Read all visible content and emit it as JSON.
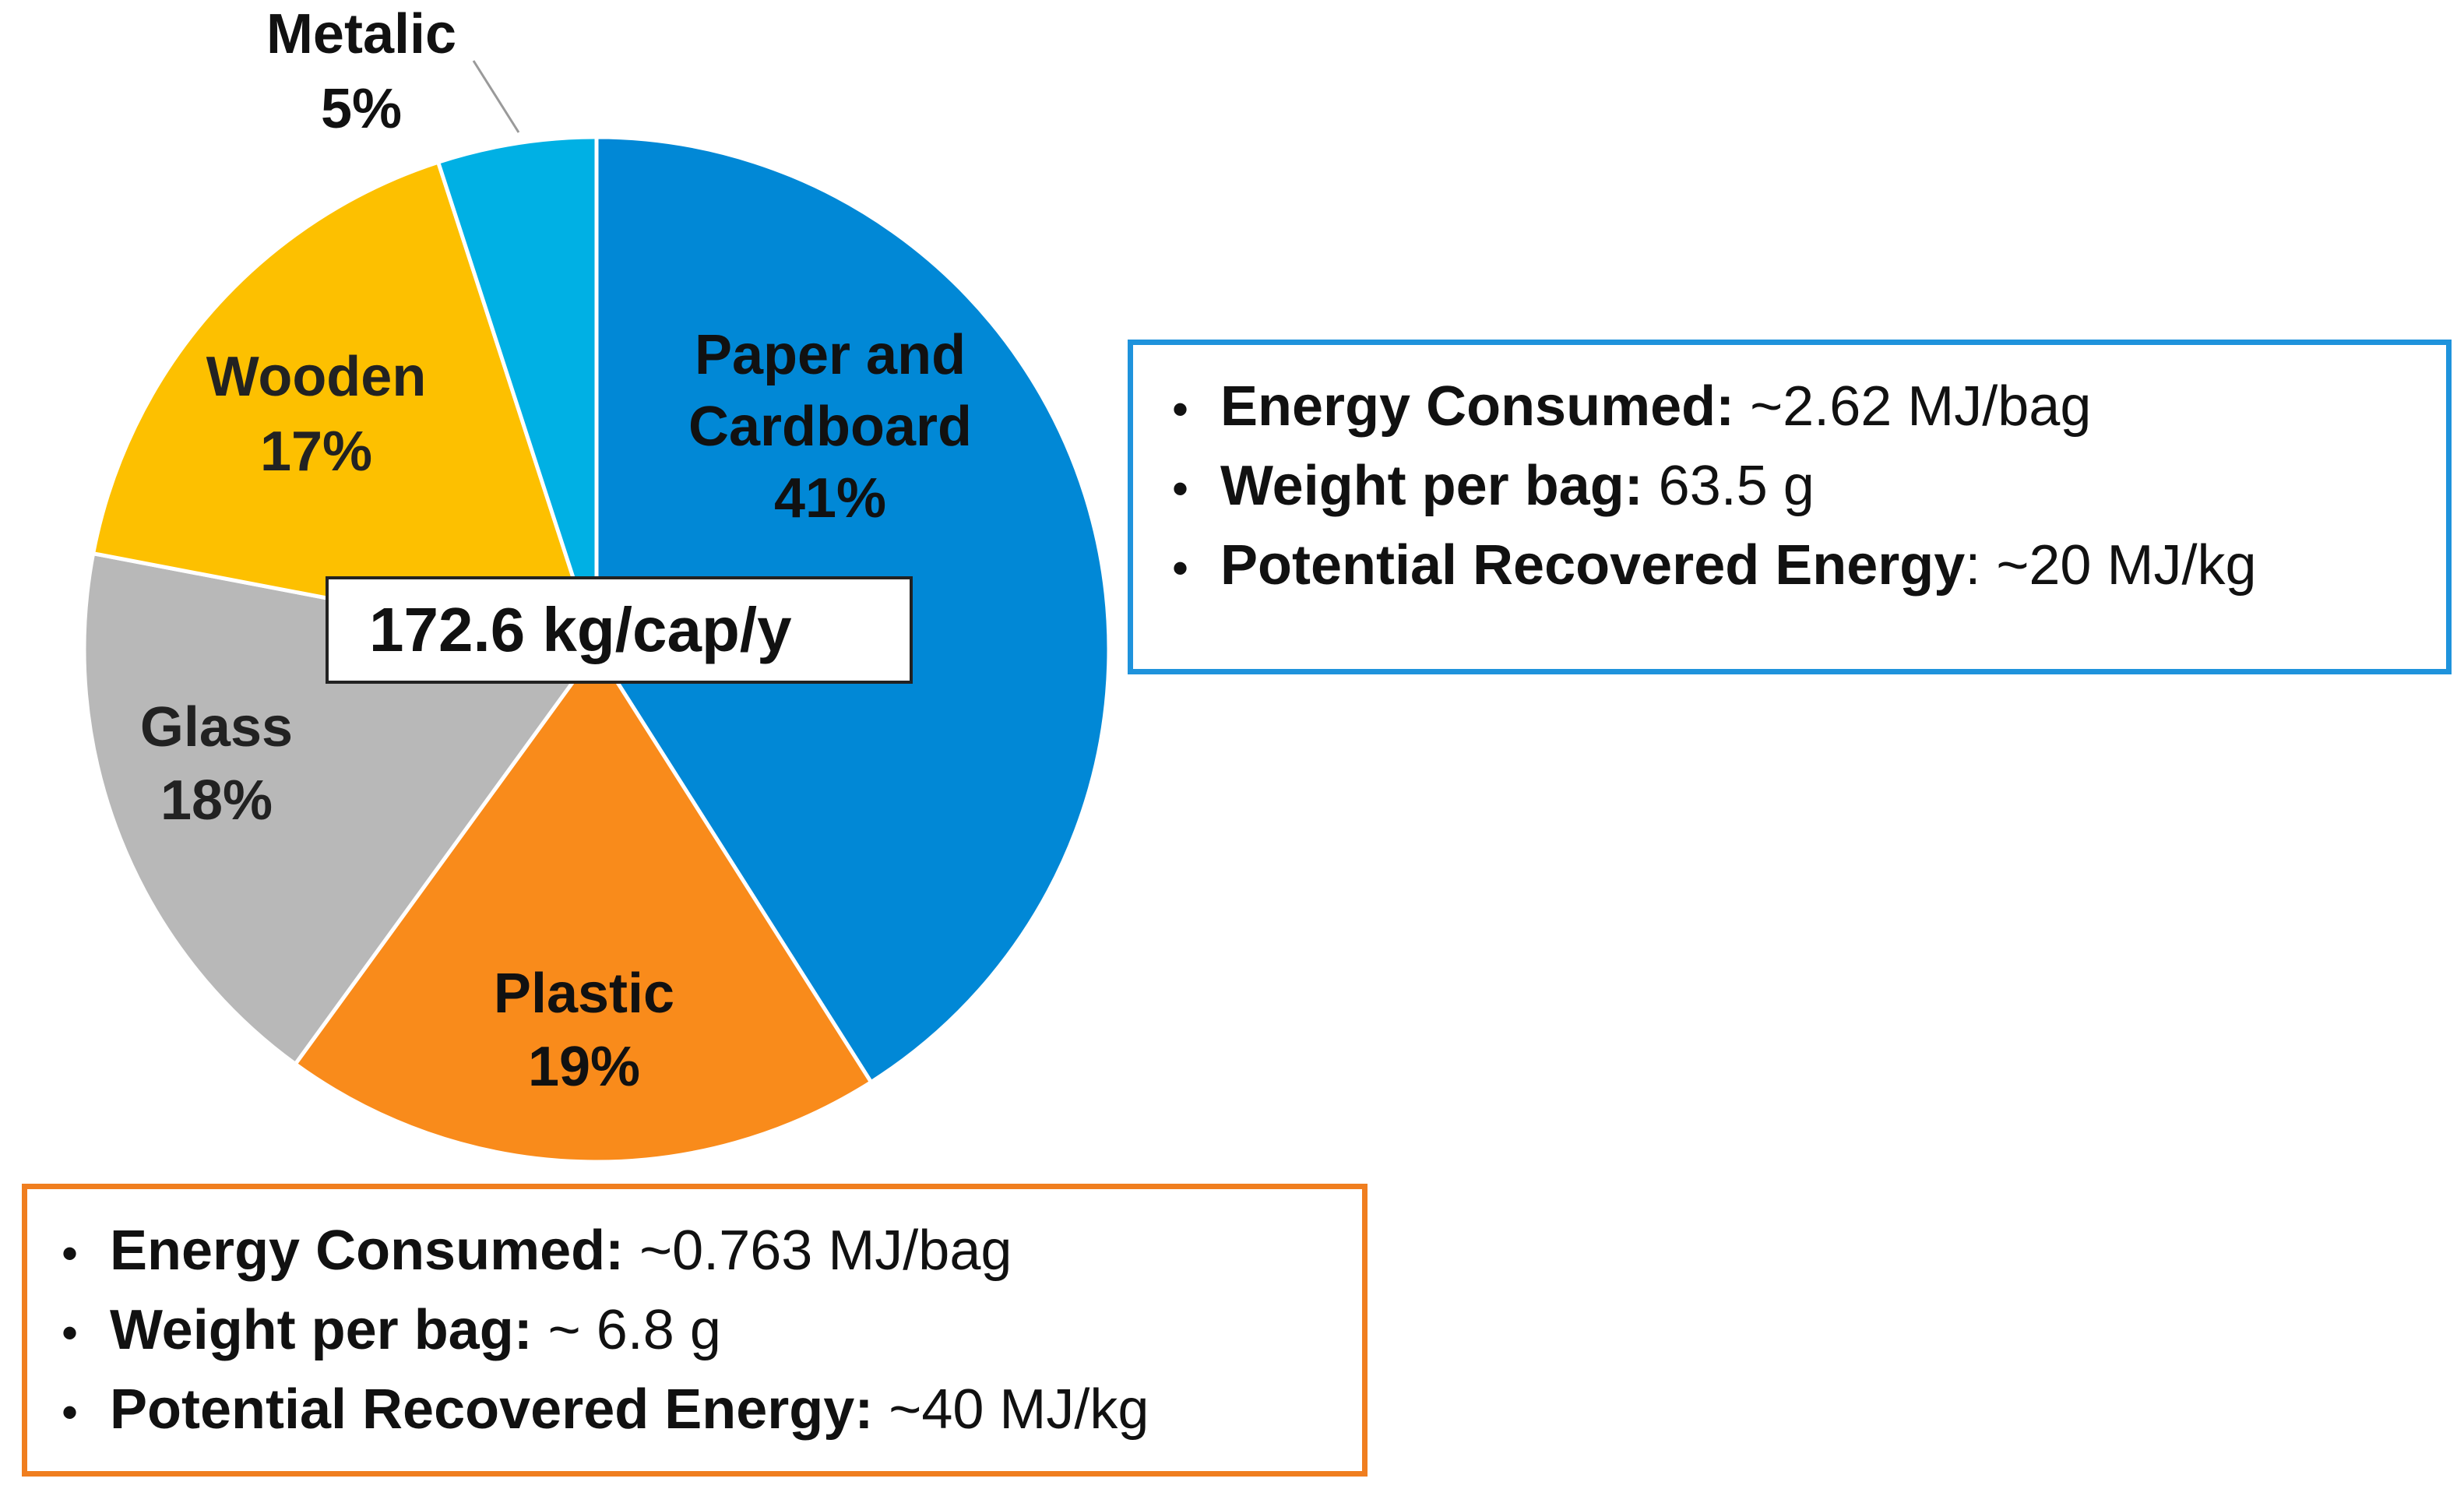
{
  "chart_data": {
    "type": "pie",
    "categories": [
      "Paper and Cardboard",
      "Plastic",
      "Glass",
      "Wooden",
      "Metalic"
    ],
    "values": [
      41,
      19,
      18,
      17,
      5
    ],
    "value_labels": [
      "41%",
      "19%",
      "18%",
      "17%",
      "5%"
    ],
    "label_lines": [
      [
        "Paper and",
        "Cardboard",
        "41%"
      ],
      [
        "Plastic",
        "19%"
      ],
      [
        "Glass",
        "18%"
      ],
      [
        "Wooden",
        "17%"
      ],
      [
        "Metalic",
        "5%"
      ]
    ],
    "colors": [
      "#0188d6",
      "#f98b1b",
      "#b8b8b8",
      "#fdc000",
      "#00b0e4"
    ],
    "start": "12 o'clock",
    "direction": "clockwise",
    "center_label": "172.6 kg/cap/y"
  },
  "info_boxes": {
    "paper": {
      "border_color": "#1f93dc",
      "items": [
        {
          "label": "Energy Consumed:",
          "value": "~2.62 MJ/bag"
        },
        {
          "label": "Weight per bag:",
          "value": "63.5 g"
        },
        {
          "label": "Potential Recovered Energy",
          "value": ": ~20 MJ/kg"
        }
      ]
    },
    "plastic": {
      "border_color": "#f07e1f",
      "items": [
        {
          "label": "Energy Consumed:",
          "value": "~0.763 MJ/bag"
        },
        {
          "label": "Weight per bag:",
          "value": "~ 6.8 g"
        },
        {
          "label": "Potential Recovered Energy:",
          "value": "~40 MJ/kg"
        }
      ]
    }
  }
}
